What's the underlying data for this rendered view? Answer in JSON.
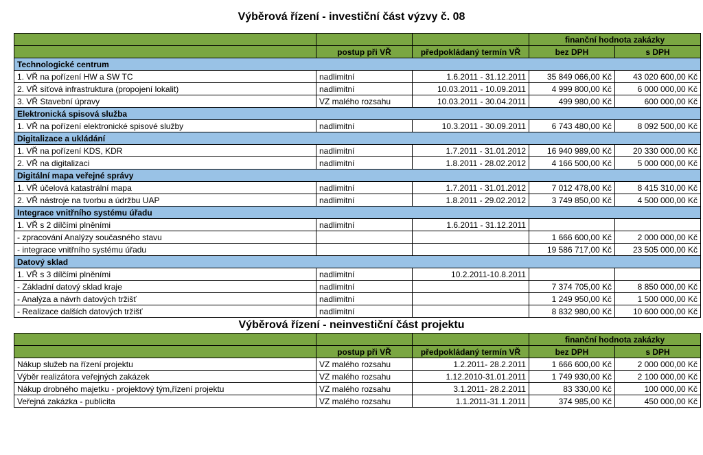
{
  "colors": {
    "header_green": "#7aa642",
    "section_blue": "#99c2e6",
    "border": "#000000",
    "background": "#ffffff",
    "text": "#000000"
  },
  "table1": {
    "title": "Výběrová řízení  - investiční část výzvy č. 08",
    "headers": {
      "proc": "postup při VŘ",
      "term": "předpokládaný termín VŘ",
      "fin_group": "finanční hodnota zakázky",
      "bez": "bez DPH",
      "s": "s DPH"
    },
    "rows": [
      {
        "type": "section",
        "desc": "Technologické centrum"
      },
      {
        "type": "data",
        "desc": "1. VŘ na pořízení HW a SW TC",
        "proc": "nadlimitní",
        "term": "1.6.2011 - 31.12.2011",
        "bez": "35 849 066,00 Kč",
        "s": "43 020 600,00 Kč"
      },
      {
        "type": "data",
        "desc": "2. VŘ síťová infrastruktura (propojení lokalit)",
        "proc": "nadlimitní",
        "term": "10.03.2011 - 10.09.2011",
        "bez": "4 999 800,00 Kč",
        "s": "6 000 000,00 Kč"
      },
      {
        "type": "data",
        "desc": "3. VŘ Stavební úpravy",
        "proc": "VZ malého rozsahu",
        "term": "10.03.2011 - 30.04.2011",
        "bez": "499 980,00 Kč",
        "s": "600 000,00 Kč"
      },
      {
        "type": "section",
        "desc": "Elektronická spisová služba"
      },
      {
        "type": "data",
        "desc": "1. VŘ na pořízení elektronické spisové služby",
        "proc": "nadlimitní",
        "term": "10.3.2011 - 30.09.2011",
        "bez": "6 743 480,00 Kč",
        "s": "8 092 500,00 Kč"
      },
      {
        "type": "section",
        "desc": "Digitalizace a ukládání"
      },
      {
        "type": "data",
        "desc": "1. VŘ na pořízení KDS, KDR",
        "proc": "nadlimitní",
        "term": "1.7.2011 - 31.01.2012",
        "bez": "16 940 989,00 Kč",
        "s": "20 330 000,00 Kč"
      },
      {
        "type": "data",
        "desc": "2. VŘ na digitalizaci",
        "proc": "nadlimitní",
        "term": "1.8.2011 - 28.02.2012",
        "bez": "4 166 500,00 Kč",
        "s": "5 000 000,00 Kč"
      },
      {
        "type": "section",
        "desc": "Digitální mapa veřejné správy"
      },
      {
        "type": "data",
        "desc": "1. VŘ účelová katastrální mapa",
        "proc": "nadlimitní",
        "term": "1.7.2011 - 31.01.2012",
        "bez": "7 012 478,00 Kč",
        "s": "8 415 310,00 Kč"
      },
      {
        "type": "data",
        "desc": "2. VŘ nástroje na tvorbu a údržbu UAP",
        "proc": "nadlimitní",
        "term": "1.8.2011 - 29.02.2012",
        "bez": "3 749 850,00 Kč",
        "s": "4 500 000,00 Kč"
      },
      {
        "type": "section",
        "desc": "Integrace vnitřního systému úřadu"
      },
      {
        "type": "data",
        "desc": "1. VŘ s 2 dílčími plněními",
        "proc": "nadlimitní",
        "term": "1.6.2011 - 31.12.2011",
        "bez": "",
        "s": ""
      },
      {
        "type": "data",
        "desc": " - zpracování Analýzy současného stavu",
        "proc": "",
        "term": "",
        "bez": "1 666 600,00 Kč",
        "s": "2 000 000,00 Kč"
      },
      {
        "type": "data",
        "desc": " - integrace vnitřního systému úřadu",
        "proc": "",
        "term": "",
        "bez": "19 586 717,00 Kč",
        "s": "23 505 000,00 Kč"
      },
      {
        "type": "section",
        "desc": "Datový sklad"
      },
      {
        "type": "data",
        "desc": "1. VŘ s 3 dílčími plněními",
        "proc": "nadlimitní",
        "term": "10.2.2011-10.8.2011",
        "bez": "",
        "s": ""
      },
      {
        "type": "data",
        "desc": " - Základní datový sklad kraje",
        "proc": "nadlimitní",
        "term": "",
        "bez": "7 374 705,00 Kč",
        "s": "8 850 000,00 Kč"
      },
      {
        "type": "data",
        "desc": " - Analýza a návrh datových tržišť",
        "proc": "nadlimitní",
        "term": "",
        "bez": "1 249 950,00 Kč",
        "s": "1 500 000,00 Kč"
      },
      {
        "type": "data",
        "desc": " - Realizace dalších datových tržišť",
        "proc": "nadlimitní",
        "term": "",
        "bez": "8 832 980,00 Kč",
        "s": "10 600 000,00 Kč"
      }
    ]
  },
  "table2": {
    "title": "Výběrová řízení - neinvestiční část projektu",
    "headers": {
      "proc": "postup při VŘ",
      "term": "předpokládaný termín VŘ",
      "fin_group": "finanční hodnota zakázky",
      "bez": "bez DPH",
      "s": "s DPH"
    },
    "rows": [
      {
        "desc": "Nákup služeb na řízení projektu",
        "proc": "VZ malého rozsahu",
        "term": "1.2.2011- 28.2.2011",
        "bez": "1 666 600,00 Kč",
        "s": "2 000 000,00 Kč"
      },
      {
        "desc": "Výběr realizátora veřejných zakázek",
        "proc": "VZ malého rozsahu",
        "term": "1.12.2010-31.01.2011",
        "bez": "1 749 930,00 Kč",
        "s": "2 100 000,00 Kč"
      },
      {
        "desc": "Nákup drobného majetku - projektový tým,řízení projektu",
        "proc": "VZ malého rozsahu",
        "term": "3.1.2011- 28.2.2011",
        "bez": "83 330,00 Kč",
        "s": "100 000,00 Kč"
      },
      {
        "desc": "Veřejná zakázka - publicita",
        "proc": "VZ malého rozsahu",
        "term": "1.1.2011-31.1.2011",
        "bez": "374 985,00 Kč",
        "s": "450 000,00 Kč"
      }
    ]
  }
}
